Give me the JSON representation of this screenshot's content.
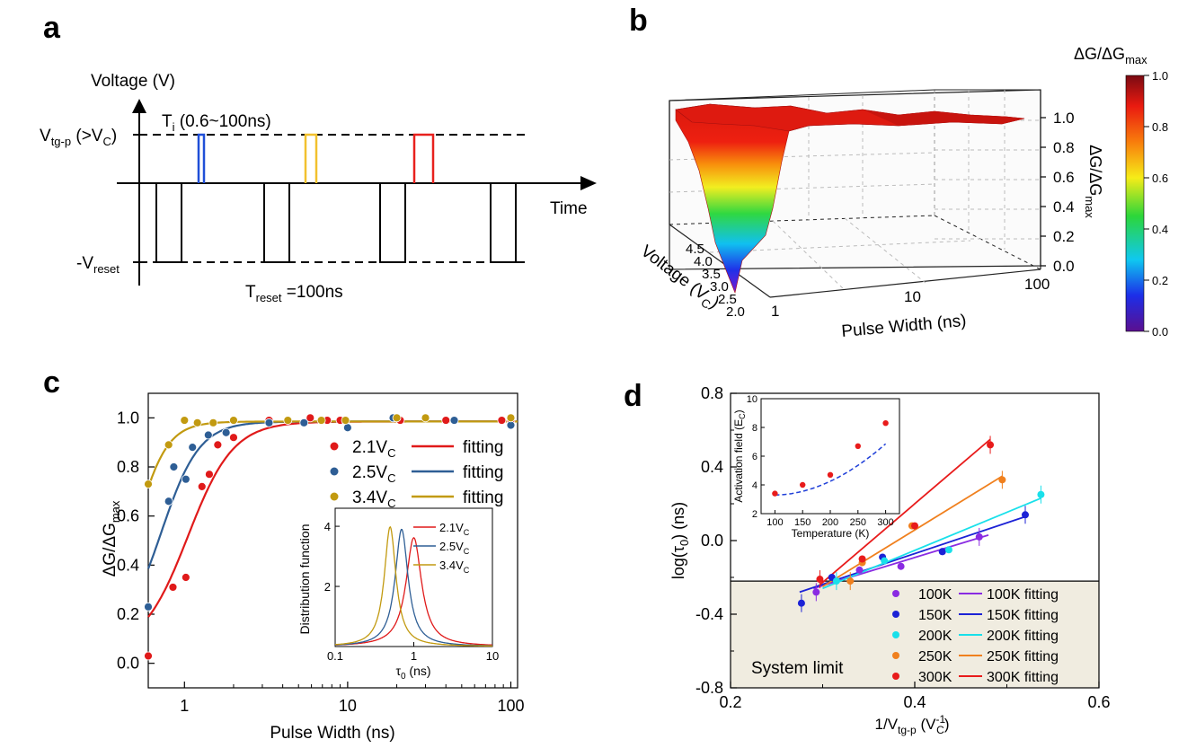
{
  "panel_labels": [
    "a",
    "b",
    "c",
    "d"
  ],
  "chart_data": [
    {
      "id": "a",
      "type": "diagram",
      "ylabel": "Voltage (V)",
      "xlabel": "Time",
      "levels": {
        "upper": {
          "main": "V",
          "sub": "tg-p",
          "rest": " (>V",
          "sub2": "C",
          "end": ")"
        },
        "lower": {
          "main": "-V",
          "sub": "reset"
        }
      },
      "annotations": {
        "ti": {
          "main": "T",
          "sub": "i",
          "rest": " (0.6~100ns)"
        },
        "treset": {
          "main": "T",
          "sub": "reset",
          "rest": " =100ns"
        }
      },
      "pulse_colors": [
        "#1f4fd8",
        "#f2c12e",
        "#e8211d"
      ]
    },
    {
      "id": "b",
      "type": "surface3d",
      "xlabel": "Pulse Width (ns)",
      "ylabel": {
        "main": "Voltage (V",
        "sub": "C",
        "end": ")"
      },
      "zlabel": {
        "main": "ΔG/ΔG",
        "sub": "max"
      },
      "x_ticks": [
        "1",
        "10",
        "100"
      ],
      "y_ticks": [
        "2.0",
        "2.5",
        "3.0",
        "3.5",
        "4.0",
        "4.5"
      ],
      "z_ticks": [
        "0.0",
        "0.2",
        "0.4",
        "0.6",
        "0.8",
        "1.0"
      ],
      "colorbar": {
        "title": {
          "main": "ΔG/ΔG",
          "sub": "max"
        },
        "ticks": [
          "0.0",
          "0.2",
          "0.4",
          "0.6",
          "0.8",
          "1.0"
        ],
        "colors": [
          "#5b0f8f",
          "#1c2ee8",
          "#0fc8f0",
          "#2cd63a",
          "#f6ec18",
          "#f87d0c",
          "#ea1a10",
          "#7a0a12"
        ]
      }
    },
    {
      "id": "c",
      "type": "scatter",
      "xlabel": "Pulse Width (ns)",
      "ylabel": {
        "main": "ΔG/ΔG",
        "sub": "max"
      },
      "xscale": "log",
      "xlim": [
        0.6,
        110
      ],
      "ylim": [
        -0.1,
        1.1
      ],
      "x_ticks": [
        "1",
        "10",
        "100"
      ],
      "y_ticks": [
        "0.0",
        "0.2",
        "0.4",
        "0.6",
        "0.8",
        "1.0"
      ],
      "fit_label": "fitting",
      "series": [
        {
          "name": "2.1V_C",
          "label_main": "2.1V",
          "label_sub": "C",
          "color": "#e01a1a",
          "points": [
            [
              0.6,
              0.03
            ],
            [
              0.85,
              0.31
            ],
            [
              1.02,
              0.35
            ],
            [
              1.28,
              0.72
            ],
            [
              1.42,
              0.77
            ],
            [
              1.6,
              0.89
            ],
            [
              2.0,
              0.92
            ],
            [
              3.3,
              0.99
            ],
            [
              5.9,
              1.0
            ],
            [
              7.5,
              0.99
            ],
            [
              9.0,
              0.99
            ],
            [
              21,
              0.99
            ],
            [
              40,
              0.99
            ],
            [
              88,
              0.99
            ],
            [
              100,
              0.99
            ]
          ],
          "fit": {
            "t0": 1.05,
            "w": 0.32,
            "ymin": 0.05,
            "ymax": 0.985
          }
        },
        {
          "name": "2.5V_C",
          "label_main": "2.5V",
          "label_sub": "C",
          "color": "#2e5e95",
          "points": [
            [
              0.6,
              0.23
            ],
            [
              0.8,
              0.66
            ],
            [
              0.86,
              0.8
            ],
            [
              1.02,
              0.75
            ],
            [
              1.12,
              0.88
            ],
            [
              1.4,
              0.93
            ],
            [
              1.8,
              0.94
            ],
            [
              3.3,
              0.98
            ],
            [
              5.4,
              0.98
            ],
            [
              10,
              0.96
            ],
            [
              19,
              1.0
            ],
            [
              45,
              0.99
            ],
            [
              100,
              0.97
            ]
          ],
          "fit": {
            "t0": 0.72,
            "w": 0.27,
            "ymin": 0.08,
            "ymax": 0.985
          }
        },
        {
          "name": "3.4V_C",
          "label_main": "3.4V",
          "label_sub": "C",
          "color": "#c29a10",
          "points": [
            [
              0.6,
              0.73
            ],
            [
              0.8,
              0.89
            ],
            [
              1.0,
              0.99
            ],
            [
              1.2,
              0.98
            ],
            [
              1.5,
              0.98
            ],
            [
              2.0,
              0.99
            ],
            [
              4.3,
              0.99
            ],
            [
              6.9,
              0.99
            ],
            [
              9.7,
              0.99
            ],
            [
              20,
              1.0
            ],
            [
              30,
              1.0
            ],
            [
              100,
              1.0
            ]
          ],
          "fit": {
            "t0": 0.5,
            "w": 0.22,
            "ymin": 0.1,
            "ymax": 0.985
          }
        }
      ],
      "inset": {
        "type": "line",
        "xlabel": {
          "main": "τ",
          "sub": "0",
          "end": " (ns)"
        },
        "ylabel": "Distribution function",
        "xscale": "log",
        "xlim": [
          0.1,
          10
        ],
        "ylim": [
          0,
          4.6
        ],
        "x_ticks": [
          "0.1",
          "1",
          "10"
        ],
        "y_ticks": [
          "2",
          "4"
        ],
        "peaks": [
          {
            "name": "2.1V_C",
            "center": 1.0,
            "height": 3.62,
            "width": 0.12
          },
          {
            "name": "2.5V_C",
            "center": 0.7,
            "height": 3.9,
            "width": 0.1
          },
          {
            "name": "3.4V_C",
            "center": 0.5,
            "height": 3.98,
            "width": 0.09
          }
        ]
      }
    },
    {
      "id": "d",
      "type": "scatter",
      "xlabel": {
        "main": "1/V",
        "sub": "tg-p",
        "end": " (V",
        "sup": "-1",
        "sub2": "C",
        "end2": ")"
      },
      "ylabel": {
        "main": "log(τ",
        "sub": "0",
        "end": ") (ns)"
      },
      "xlim": [
        0.2,
        0.6
      ],
      "ylim": [
        -0.8,
        0.8
      ],
      "x_ticks": [
        "0.2",
        "0.4",
        "0.6"
      ],
      "y_ticks": [
        "-0.8",
        "-0.4",
        "0.0",
        "0.4",
        "0.8"
      ],
      "system_limit": {
        "label": "System limit",
        "y": -0.22
      },
      "series": [
        {
          "name": "100K",
          "fit_label": "100K fitting",
          "color": "#8a2be2",
          "points": [
            [
              0.293,
              -0.28
            ],
            [
              0.34,
              -0.16
            ],
            [
              0.385,
              -0.14
            ],
            [
              0.43,
              -0.06
            ],
            [
              0.47,
              0.02
            ]
          ],
          "fit": [
            [
              0.29,
              -0.26
            ],
            [
              0.48,
              0.03
            ]
          ]
        },
        {
          "name": "150K",
          "fit_label": "150K fitting",
          "color": "#1c22d6",
          "points": [
            [
              0.277,
              -0.34
            ],
            [
              0.31,
              -0.2
            ],
            [
              0.365,
              -0.09
            ],
            [
              0.43,
              -0.06
            ],
            [
              0.52,
              0.14
            ]
          ],
          "fit": [
            [
              0.275,
              -0.28
            ],
            [
              0.52,
              0.13
            ]
          ]
        },
        {
          "name": "200K",
          "fit_label": "200K fitting",
          "color": "#19e0ea",
          "points": [
            [
              0.315,
              -0.22
            ],
            [
              0.367,
              -0.11
            ],
            [
              0.437,
              -0.05
            ],
            [
              0.537,
              0.25
            ]
          ],
          "fit": [
            [
              0.3,
              -0.26
            ],
            [
              0.537,
              0.23
            ]
          ]
        },
        {
          "name": "250K",
          "fit_label": "250K fitting",
          "color": "#f0801e",
          "points": [
            [
              0.33,
              -0.22
            ],
            [
              0.343,
              -0.12
            ],
            [
              0.397,
              0.08
            ],
            [
              0.495,
              0.33
            ]
          ],
          "fit": [
            [
              0.3,
              -0.25
            ],
            [
              0.495,
              0.35
            ]
          ]
        },
        {
          "name": "300K",
          "fit_label": "300K fitting",
          "color": "#e81b1b",
          "points": [
            [
              0.297,
              -0.21
            ],
            [
              0.343,
              -0.1
            ],
            [
              0.4,
              0.08
            ],
            [
              0.482,
              0.52
            ]
          ],
          "fit": [
            [
              0.297,
              -0.24
            ],
            [
              0.482,
              0.55
            ]
          ]
        }
      ],
      "inset": {
        "type": "scatter",
        "xlabel": "Temperature (K)",
        "ylabel": {
          "main": "Activation field (E",
          "sub": "C",
          "end": ")"
        },
        "xlim": [
          75,
          325
        ],
        "ylim": [
          2,
          10
        ],
        "x_ticks": [
          "100",
          "150",
          "200",
          "250",
          "300"
        ],
        "y_ticks": [
          "2",
          "4",
          "6",
          "8",
          "10"
        ],
        "x": [
          100,
          150,
          200,
          250,
          300
        ],
        "y": [
          3.4,
          4.0,
          4.7,
          6.7,
          8.3
        ],
        "color": "#e81b1b",
        "fit_color": "#1f3fd8"
      }
    }
  ]
}
